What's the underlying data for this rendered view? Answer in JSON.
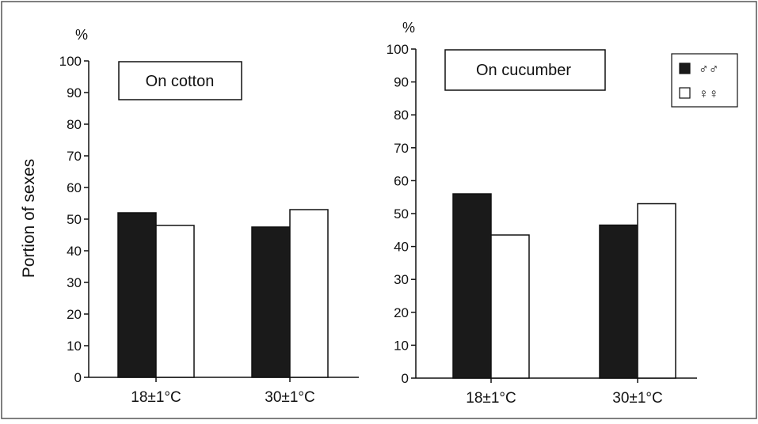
{
  "colors": {
    "males": "#1a1a1a",
    "females": "#ffffff",
    "axis": "#111111"
  },
  "shared": {
    "ylabel": "Portion of sexes",
    "unit": "%"
  },
  "legend": [
    {
      "symbol": "♂♂",
      "fill": "#1a1a1a"
    },
    {
      "symbol": "♀♀",
      "fill": "#ffffff"
    }
  ],
  "chart_data": [
    {
      "type": "bar",
      "title": "On cotton",
      "categories": [
        "18±1°C",
        "30±1°C"
      ],
      "series": [
        {
          "name": "♂♂",
          "values": [
            52,
            47.5
          ]
        },
        {
          "name": "♀♀",
          "values": [
            48,
            53
          ]
        }
      ],
      "ylabel": "Portion of sexes",
      "yunit": "%",
      "ylim": [
        0,
        100
      ],
      "yticks": [
        0,
        10,
        20,
        30,
        40,
        50,
        60,
        70,
        80,
        90,
        100
      ],
      "grid": false
    },
    {
      "type": "bar",
      "title": "On cucumber",
      "categories": [
        "18±1°C",
        "30±1°C"
      ],
      "series": [
        {
          "name": "♂♂",
          "values": [
            56,
            46.5
          ]
        },
        {
          "name": "♀♀",
          "values": [
            43.5,
            53
          ]
        }
      ],
      "yunit": "%",
      "ylim": [
        0,
        100
      ],
      "yticks": [
        0,
        10,
        20,
        30,
        40,
        50,
        60,
        70,
        80,
        90,
        100
      ],
      "grid": false,
      "legend_position": "top-right"
    }
  ]
}
